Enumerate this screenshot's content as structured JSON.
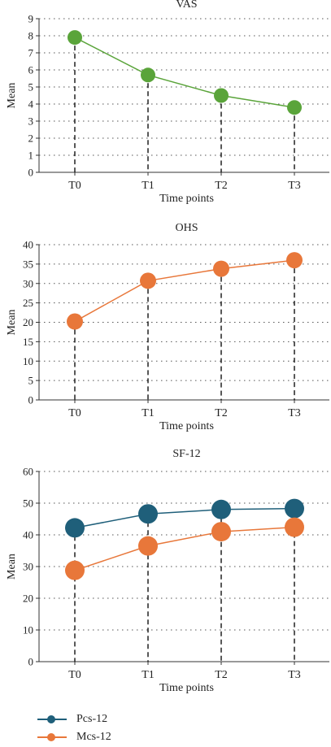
{
  "chart_data": [
    {
      "type": "line",
      "title": "VAS",
      "xlabel": "Time points",
      "ylabel": "Mean",
      "categories": [
        "T0",
        "T1",
        "T2",
        "T3"
      ],
      "ylim": [
        0,
        9
      ],
      "yticks": [
        0,
        1,
        2,
        3,
        4,
        5,
        6,
        7,
        8,
        9
      ],
      "grid": "dotted horizontal",
      "series": [
        {
          "values": [
            7.9,
            5.7,
            4.5,
            3.8
          ],
          "color": "#5aa43a"
        }
      ]
    },
    {
      "type": "line",
      "title": "OHS",
      "xlabel": "Time points",
      "ylabel": "Mean",
      "categories": [
        "T0",
        "T1",
        "T2",
        "T3"
      ],
      "ylim": [
        0,
        40
      ],
      "yticks": [
        0,
        5,
        10,
        15,
        20,
        25,
        30,
        35,
        40
      ],
      "grid": "dotted horizontal",
      "series": [
        {
          "values": [
            20.2,
            30.7,
            33.8,
            36.0
          ],
          "color": "#e8773a"
        }
      ]
    },
    {
      "type": "line",
      "title": "SF-12",
      "xlabel": "Time points",
      "ylabel": "Mean",
      "categories": [
        "T0",
        "T1",
        "T2",
        "T3"
      ],
      "ylim": [
        0,
        60
      ],
      "yticks": [
        0,
        10,
        20,
        30,
        40,
        50,
        60
      ],
      "grid": "dotted horizontal",
      "legend": "bottom-left",
      "series": [
        {
          "name": "Pcs-12",
          "values": [
            42.2,
            46.6,
            48.0,
            48.3
          ],
          "color": "#1f5f7a"
        },
        {
          "name": "Mcs-12",
          "values": [
            28.8,
            36.5,
            41.0,
            42.4
          ],
          "color": "#e8773a"
        }
      ]
    }
  ]
}
